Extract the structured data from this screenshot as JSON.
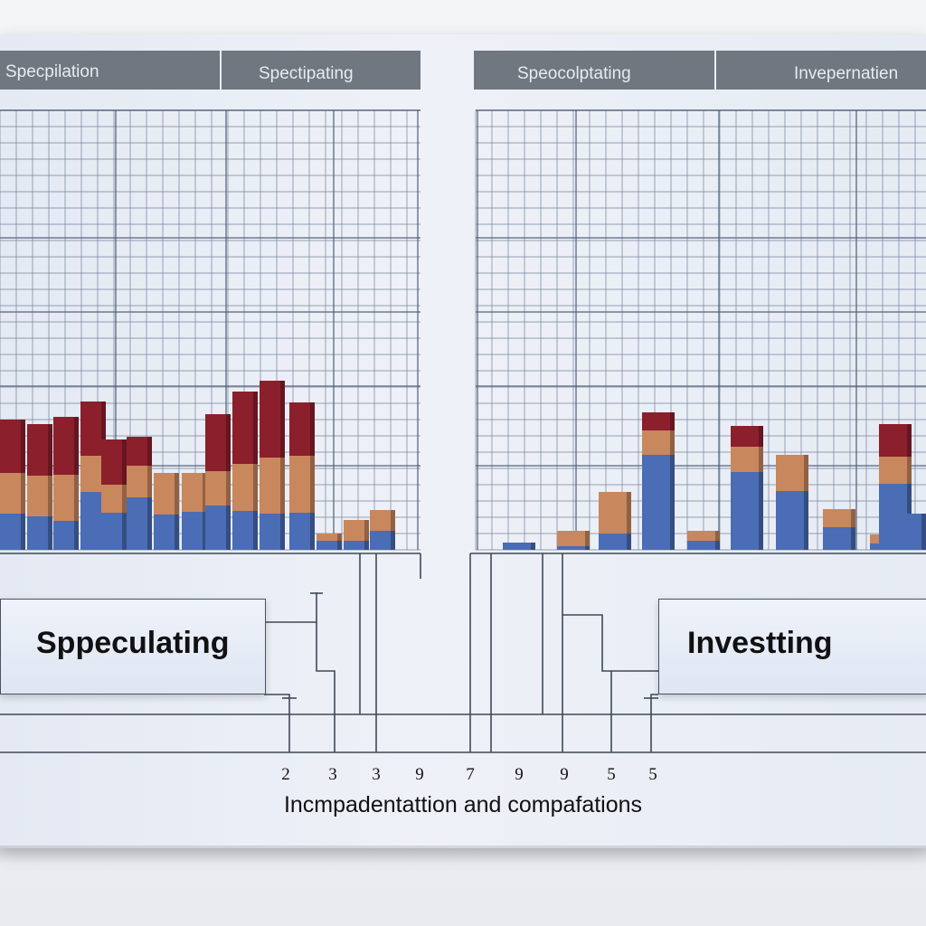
{
  "chart_data": [
    {
      "type": "bar",
      "stacked": true,
      "headers": [
        "Specpilation",
        "Spectipating"
      ],
      "series": [],
      "colors": [
        "#4a6db5",
        "#c9875d",
        "#8c1f2c"
      ],
      "stacks": [
        [
          40,
          45,
          59
        ],
        [
          37,
          45,
          57
        ],
        [
          32,
          51,
          64
        ],
        [
          64,
          40,
          60
        ],
        [
          41,
          31,
          50
        ],
        [
          58,
          35,
          32
        ],
        [
          39,
          46,
          0
        ],
        [
          42,
          43,
          0
        ],
        [
          49,
          38,
          63
        ],
        [
          43,
          52,
          80
        ],
        [
          40,
          62,
          85
        ],
        [
          41,
          63,
          59
        ],
        [
          21,
          23,
          0
        ],
        [
          10,
          23,
          0
        ],
        [
          10,
          8,
          0
        ]
      ]
    },
    {
      "type": "bar",
      "stacked": true,
      "headers": [
        "Speocolptating",
        "Invepernatien"
      ],
      "series": [],
      "colors": [
        "#4a6db5",
        "#c9875d",
        "#8c1f2c"
      ],
      "stacks": [
        [
          8,
          0,
          0
        ],
        [
          4,
          17,
          0
        ],
        [
          18,
          46,
          0
        ],
        [
          105,
          27,
          20
        ],
        [
          10,
          11,
          0
        ],
        [
          86,
          28,
          23
        ],
        [
          65,
          40,
          0
        ],
        [
          25,
          20,
          0
        ],
        [
          7,
          10,
          0
        ],
        [
          73,
          30,
          36
        ],
        [
          40,
          0,
          0
        ]
      ]
    }
  ],
  "labels": {
    "left": "Sppeculating",
    "right": "Investting"
  },
  "ticks": [
    "2",
    "3",
    "3",
    "9",
    "7",
    "9",
    "9",
    "5",
    "5"
  ],
  "caption": "Incmpadentattion and compafations"
}
